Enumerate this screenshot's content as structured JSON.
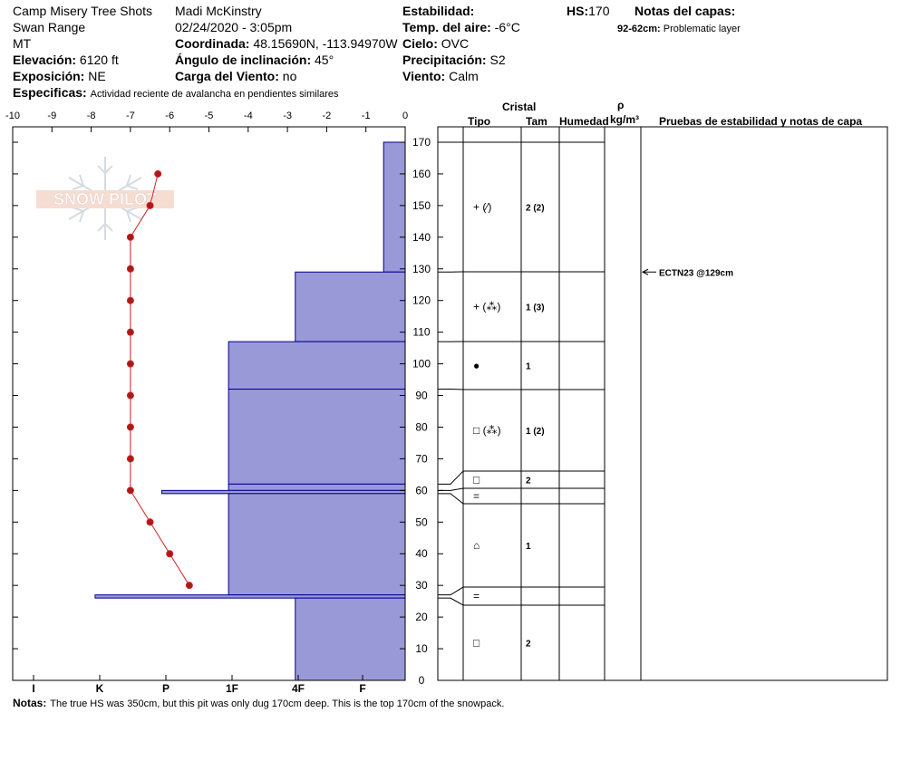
{
  "header": {
    "location": "Camp Misery Tree Shots",
    "range": "Swan Range",
    "state": "MT",
    "observer": "Madi  McKinstry",
    "datetime": "02/24/2020 - 3:05pm",
    "elevation_label": "Elevación:",
    "elevation_value": "6120 ft",
    "exposure_label": "Exposición:",
    "exposure_value": "NE",
    "coordinates_label": "Coordinada:",
    "coordinates_value": "48.15690N, -113.94970W",
    "angle_label": "Ángulo de inclinación:",
    "angle_value": "45°",
    "wind_load_label": "Carga del Viento:",
    "wind_load_value": "no",
    "stability_label": "Estabilidad:",
    "stability_value": "",
    "air_temp_label": "Temp. del aire:",
    "air_temp_value": "-6°C",
    "sky_label": "Cielo:",
    "sky_value": "OVC",
    "precip_label": "Precipitación:",
    "precip_value": "S2",
    "wind_label": "Viento:",
    "wind_value": "Calm",
    "hs_label": "HS:",
    "hs_value": "170",
    "layer_notes_label": "Notas del capas:",
    "layer_note_range": "92-62cm:",
    "layer_note_text": "Problematic layer",
    "specifics_label": "Especificas:",
    "specifics_value": "Actividad reciente de avalancha en pendientes similares"
  },
  "table_headers": {
    "crystal": "Cristal",
    "type": "Tipo",
    "size": "Tam",
    "humidity": "Humedad",
    "rho": "ρ",
    "density_unit": "kg/m³",
    "tests": "Pruebas de estabilidad y notas de capa"
  },
  "layers": [
    {
      "top": 170,
      "bottom": 129,
      "type": "+ (⁄)",
      "size": "2 (2)"
    },
    {
      "top": 129,
      "bottom": 107,
      "type": "+ (⁂)",
      "size": "1 (3)"
    },
    {
      "top": 107,
      "bottom": 92,
      "type": "●",
      "size": "1"
    },
    {
      "top": 92,
      "bottom": 62,
      "type": "□ (⁂)",
      "size": "1 (2)"
    },
    {
      "top": 62,
      "bottom": 60,
      "type": "□",
      "size": "2"
    },
    {
      "top": 60,
      "bottom": 59,
      "type": "=",
      "size": ""
    },
    {
      "top": 59,
      "bottom": 27,
      "type": "⌂",
      "size": "1"
    },
    {
      "top": 27,
      "bottom": 26,
      "type": "=",
      "size": ""
    },
    {
      "top": 26,
      "bottom": 0,
      "type": "□",
      "size": "2"
    }
  ],
  "stability_test": {
    "text": "ECTN23 @129cm",
    "depth": 129
  },
  "notes_label": "Notas:",
  "notes_value": "The true HS was 350cm, but this pit was only dug 170cm deep. This is the top 170cm of the snowpack.",
  "colors": {
    "hardness_fill": "#9999d8",
    "hardness_stroke": "#00008b",
    "temp_line": "#cc2222",
    "temp_point": "#aa1a1a"
  },
  "chart_data": {
    "type": "snow_profile",
    "height_axis": {
      "min": 0,
      "max": 170,
      "ticks": [
        0,
        10,
        20,
        30,
        40,
        50,
        60,
        70,
        80,
        90,
        100,
        110,
        120,
        130,
        140,
        150,
        160,
        170
      ]
    },
    "temperature_axis": {
      "min": -10,
      "max": 0,
      "ticks": [
        "-10",
        "-9",
        "-8",
        "-7",
        "-6",
        "-5",
        "-4",
        "-3",
        "-2",
        "-1",
        "0"
      ]
    },
    "hardness_axis": {
      "ticks": [
        "I",
        "K",
        "P",
        "1F",
        "4F",
        "F"
      ]
    },
    "temperature_profile": [
      {
        "height": 160,
        "temp": -6.3
      },
      {
        "height": 150,
        "temp": -6.5
      },
      {
        "height": 140,
        "temp": -7.0
      },
      {
        "height": 130,
        "temp": -7.0
      },
      {
        "height": 120,
        "temp": -7.0
      },
      {
        "height": 110,
        "temp": -7.0
      },
      {
        "height": 100,
        "temp": -7.0
      },
      {
        "height": 90,
        "temp": -7.0
      },
      {
        "height": 80,
        "temp": -7.0
      },
      {
        "height": 70,
        "temp": -7.0
      },
      {
        "height": 60,
        "temp": -7.0
      },
      {
        "height": 50,
        "temp": -6.5
      },
      {
        "height": 40,
        "temp": -6.0
      },
      {
        "height": 30,
        "temp": -5.5
      }
    ],
    "hardness_profile": [
      {
        "top": 170,
        "bottom": 129,
        "hardness": 0.55
      },
      {
        "top": 129,
        "bottom": 107,
        "hardness": 2.8
      },
      {
        "top": 107,
        "bottom": 92,
        "hardness": 4.5
      },
      {
        "top": 92,
        "bottom": 62,
        "hardness": 4.5
      },
      {
        "top": 62,
        "bottom": 60,
        "hardness": 4.5
      },
      {
        "top": 60,
        "bottom": 59,
        "hardness": 6.2
      },
      {
        "top": 59,
        "bottom": 27,
        "hardness": 4.5
      },
      {
        "top": 27,
        "bottom": 26,
        "hardness": 7.9
      },
      {
        "top": 26,
        "bottom": 0,
        "hardness": 2.8
      }
    ]
  }
}
